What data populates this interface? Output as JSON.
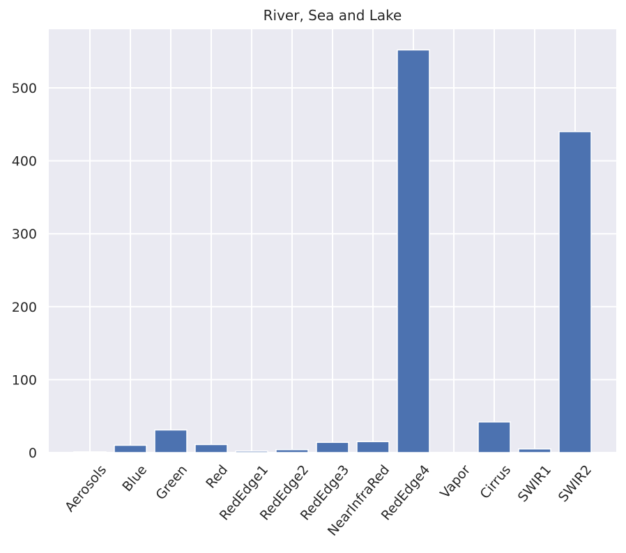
{
  "chart_data": {
    "type": "bar",
    "title": "River, Sea and Lake",
    "xlabel": "",
    "ylabel": "",
    "categories": [
      "Aerosols",
      "Blue",
      "Green",
      "Red",
      "RedEdge1",
      "RedEdge2",
      "RedEdge3",
      "NearInfraRed",
      "RedEdge4",
      "Vapor",
      "Cirrus",
      "SWIR1",
      "SWIR2"
    ],
    "values": [
      1,
      10,
      31,
      11,
      2,
      4,
      14,
      15,
      552,
      0,
      42,
      5,
      440
    ],
    "ylim": [
      0,
      580
    ],
    "yticks": [
      0,
      100,
      200,
      300,
      400,
      500
    ],
    "grid": true,
    "colors": {
      "bar": "#4c72b0",
      "background": "#eaeaf2",
      "grid": "#ffffff",
      "text": "#262626"
    }
  }
}
